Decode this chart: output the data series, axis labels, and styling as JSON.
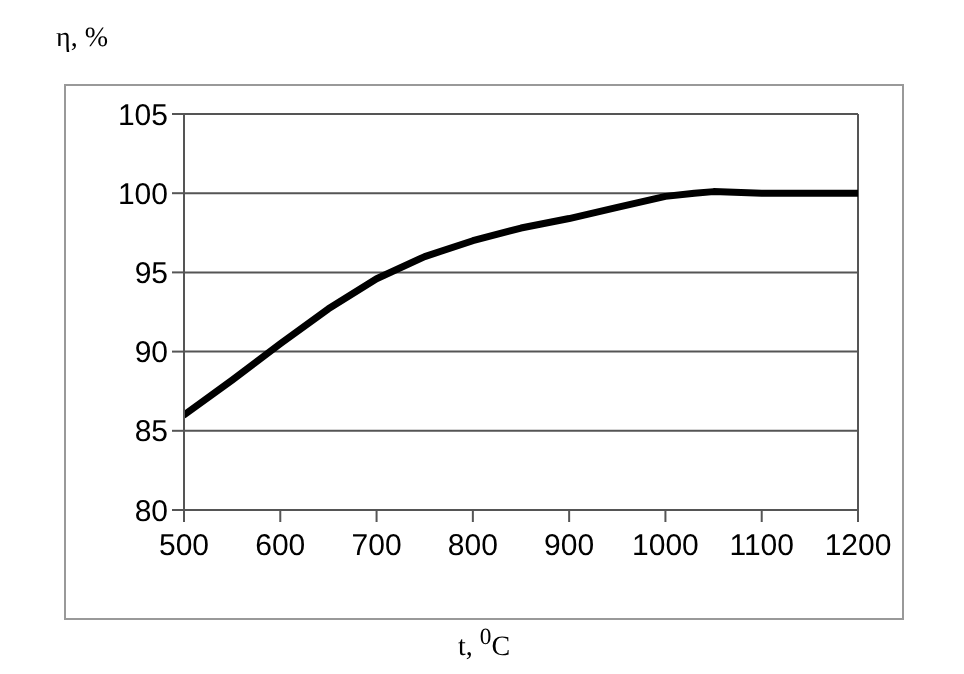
{
  "chart_data": {
    "type": "line",
    "ylabel": "η, %",
    "xlabel": "t, $^{0}$C",
    "x": [
      500,
      550,
      600,
      650,
      700,
      750,
      800,
      850,
      900,
      950,
      1000,
      1030,
      1050,
      1100,
      1150,
      1200
    ],
    "series": [
      {
        "color": "#000000",
        "values": [
          86,
          88.2,
          90.5,
          92.7,
          94.6,
          96,
          97,
          97.8,
          98.4,
          99.1,
          99.8,
          100,
          100.1,
          100,
          100,
          100
        ]
      }
    ],
    "xlim": [
      500,
      1200
    ],
    "xticks": [
      500,
      600,
      700,
      800,
      900,
      1000,
      1100,
      1200
    ],
    "ylim": [
      80,
      105
    ],
    "yticks": [
      80,
      85,
      90,
      95,
      100,
      105
    ],
    "grid": "y",
    "legend": false,
    "marker": "none",
    "line_style": "solid"
  }
}
